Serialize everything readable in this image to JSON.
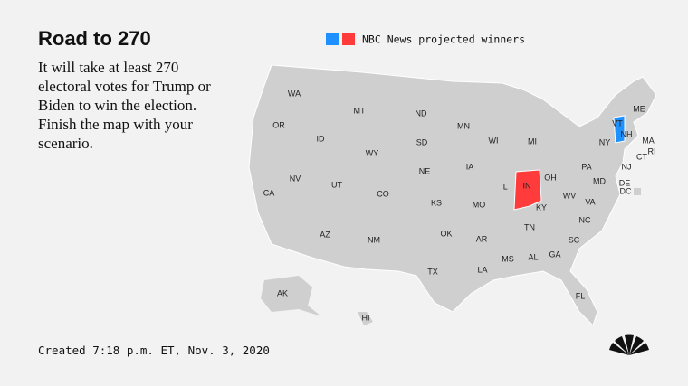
{
  "header": {
    "title": "Road to 270",
    "description": "It will take at least 270 electoral votes for Trump or Biden to win the election. Finish the map with your scenario."
  },
  "legend": {
    "label": "NBC News projected winners"
  },
  "states": [
    "WA",
    "OR",
    "ID",
    "MT",
    "ND",
    "MN",
    "WI",
    "MI",
    "WY",
    "SD",
    "IA",
    "NE",
    "IL",
    "IN",
    "OH",
    "PA",
    "NY",
    "VT",
    "NH",
    "ME",
    "MA",
    "RI",
    "CT",
    "NJ",
    "DE",
    "MD",
    "DC",
    "NV",
    "UT",
    "CO",
    "KS",
    "MO",
    "KY",
    "WV",
    "VA",
    "CA",
    "AZ",
    "NM",
    "OK",
    "AR",
    "TN",
    "NC",
    "SC",
    "MS",
    "AL",
    "GA",
    "LA",
    "TX",
    "FL",
    "AK",
    "HI"
  ],
  "footer": {
    "created": "Created 7:18 p.m. ET, Nov. 3, 2020"
  }
}
